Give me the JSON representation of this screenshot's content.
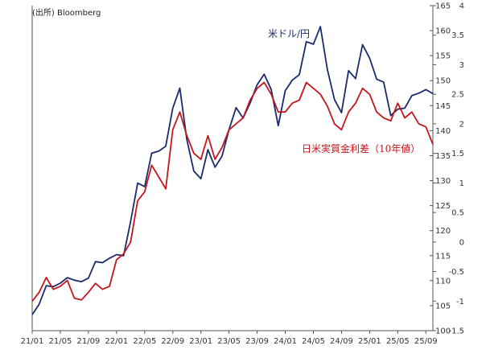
{
  "source_note": "(出所) Bloomberg",
  "chart_data": {
    "type": "line",
    "x_ticks": [
      "21/01",
      "21/05",
      "21/09",
      "22/01",
      "22/05",
      "22/09",
      "23/01",
      "23/05",
      "23/09",
      "24/01",
      "24/05",
      "24/09",
      "25/01",
      "25/05",
      "25/09"
    ],
    "x_range": [
      "2021-01",
      "2025-10"
    ],
    "y_left": {
      "min": 100,
      "max": 165,
      "ticks": [
        100,
        105,
        110,
        115,
        120,
        125,
        130,
        135,
        140,
        145,
        150,
        155,
        160,
        165
      ]
    },
    "y_right": {
      "min": -1.5,
      "max": 4,
      "ticks": [
        -1.5,
        -1,
        -0.5,
        0,
        0.5,
        1,
        1.5,
        2,
        2.5,
        3,
        3.5,
        4
      ]
    },
    "grid": false,
    "series": [
      {
        "name": "米ドル/円",
        "axis": "left",
        "color": "#1a2a6c",
        "points": [
          [
            "2021-01",
            103.2
          ],
          [
            "2021-02",
            105.3
          ],
          [
            "2021-03",
            109.0
          ],
          [
            "2021-04",
            108.8
          ],
          [
            "2021-05",
            109.5
          ],
          [
            "2021-06",
            110.6
          ],
          [
            "2021-07",
            110.1
          ],
          [
            "2021-08",
            109.8
          ],
          [
            "2021-09",
            110.5
          ],
          [
            "2021-10",
            113.8
          ],
          [
            "2021-11",
            113.6
          ],
          [
            "2021-12",
            114.5
          ],
          [
            "2022-01",
            115.2
          ],
          [
            "2022-02",
            115.0
          ],
          [
            "2022-03",
            121.8
          ],
          [
            "2022-04",
            129.5
          ],
          [
            "2022-05",
            128.8
          ],
          [
            "2022-06",
            135.5
          ],
          [
            "2022-07",
            135.9
          ],
          [
            "2022-08",
            136.9
          ],
          [
            "2022-09",
            144.5
          ],
          [
            "2022-10",
            148.5
          ],
          [
            "2022-11",
            138.2
          ],
          [
            "2022-12",
            131.9
          ],
          [
            "2023-01",
            130.4
          ],
          [
            "2023-02",
            136.2
          ],
          [
            "2023-03",
            132.7
          ],
          [
            "2023-04",
            134.9
          ],
          [
            "2023-05",
            140.2
          ],
          [
            "2023-06",
            144.6
          ],
          [
            "2023-07",
            142.5
          ],
          [
            "2023-08",
            145.5
          ],
          [
            "2023-09",
            149.2
          ],
          [
            "2023-10",
            151.3
          ],
          [
            "2023-11",
            148.2
          ],
          [
            "2023-12",
            141.0
          ],
          [
            "2024-01",
            148.0
          ],
          [
            "2024-02",
            150.1
          ],
          [
            "2024-03",
            151.2
          ],
          [
            "2024-04",
            157.8
          ],
          [
            "2024-05",
            157.3
          ],
          [
            "2024-06",
            160.8
          ],
          [
            "2024-07",
            152.2
          ],
          [
            "2024-08",
            146.2
          ],
          [
            "2024-09",
            143.6
          ],
          [
            "2024-10",
            152.0
          ],
          [
            "2024-11",
            150.4
          ],
          [
            "2024-12",
            157.2
          ],
          [
            "2025-01",
            154.5
          ],
          [
            "2025-02",
            150.3
          ],
          [
            "2025-03",
            149.7
          ],
          [
            "2025-04",
            143.0
          ],
          [
            "2025-05",
            144.3
          ],
          [
            "2025-06",
            144.5
          ],
          [
            "2025-07",
            147.0
          ],
          [
            "2025-08",
            147.5
          ],
          [
            "2025-09",
            148.2
          ],
          [
            "2025-10",
            147.4
          ]
        ]
      },
      {
        "name": "日米実質金利差（10年値）",
        "axis": "right",
        "color": "#c4161c",
        "points": [
          [
            "2021-01",
            -1.0
          ],
          [
            "2021-02",
            -0.85
          ],
          [
            "2021-03",
            -0.6
          ],
          [
            "2021-04",
            -0.8
          ],
          [
            "2021-05",
            -0.75
          ],
          [
            "2021-06",
            -0.65
          ],
          [
            "2021-07",
            -0.95
          ],
          [
            "2021-08",
            -0.98
          ],
          [
            "2021-09",
            -0.85
          ],
          [
            "2021-10",
            -0.7
          ],
          [
            "2021-11",
            -0.8
          ],
          [
            "2021-12",
            -0.75
          ],
          [
            "2022-01",
            -0.3
          ],
          [
            "2022-02",
            -0.2
          ],
          [
            "2022-03",
            0.0
          ],
          [
            "2022-04",
            0.7
          ],
          [
            "2022-05",
            0.85
          ],
          [
            "2022-06",
            1.3
          ],
          [
            "2022-07",
            1.1
          ],
          [
            "2022-08",
            0.9
          ],
          [
            "2022-09",
            1.9
          ],
          [
            "2022-10",
            2.2
          ],
          [
            "2022-11",
            1.8
          ],
          [
            "2022-12",
            1.5
          ],
          [
            "2023-01",
            1.4
          ],
          [
            "2023-02",
            1.8
          ],
          [
            "2023-03",
            1.4
          ],
          [
            "2023-04",
            1.6
          ],
          [
            "2023-05",
            1.9
          ],
          [
            "2023-06",
            2.0
          ],
          [
            "2023-07",
            2.1
          ],
          [
            "2023-08",
            2.4
          ],
          [
            "2023-09",
            2.6
          ],
          [
            "2023-10",
            2.7
          ],
          [
            "2023-11",
            2.5
          ],
          [
            "2023-12",
            2.2
          ],
          [
            "2024-01",
            2.2
          ],
          [
            "2024-02",
            2.35
          ],
          [
            "2024-03",
            2.4
          ],
          [
            "2024-04",
            2.7
          ],
          [
            "2024-05",
            2.6
          ],
          [
            "2024-06",
            2.5
          ],
          [
            "2024-07",
            2.3
          ],
          [
            "2024-08",
            2.0
          ],
          [
            "2024-09",
            1.9
          ],
          [
            "2024-10",
            2.2
          ],
          [
            "2024-11",
            2.35
          ],
          [
            "2024-12",
            2.6
          ],
          [
            "2025-01",
            2.5
          ],
          [
            "2025-02",
            2.2
          ],
          [
            "2025-03",
            2.1
          ],
          [
            "2025-04",
            2.05
          ],
          [
            "2025-05",
            2.35
          ],
          [
            "2025-06",
            2.1
          ],
          [
            "2025-07",
            2.2
          ],
          [
            "2025-08",
            2.0
          ],
          [
            "2025-09",
            1.95
          ],
          [
            "2025-10",
            1.65
          ]
        ]
      }
    ],
    "annotations": [
      {
        "text": "米ドル/円",
        "series": 0
      },
      {
        "text": "日米実質金利差（10年値）",
        "series": 1
      }
    ]
  }
}
